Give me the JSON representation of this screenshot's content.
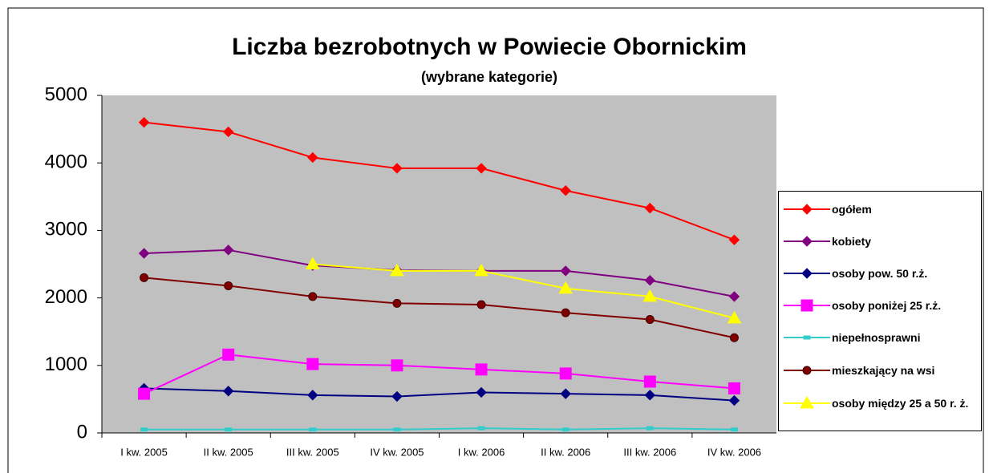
{
  "chart_data": {
    "type": "line",
    "title": "Liczba bezrobotnych  w Powiecie Obornickim",
    "subtitle": "(wybrane kategorie)",
    "categories": [
      "I kw. 2005",
      "II kw. 2005",
      "III kw. 2005",
      "IV kw. 2005",
      "I kw. 2006",
      "II kw. 2006",
      "III kw. 2006",
      "IV kw. 2006"
    ],
    "ylim": [
      0,
      5000
    ],
    "yticks": [
      0,
      1000,
      2000,
      3000,
      4000,
      5000
    ],
    "grid": false,
    "legend": "right",
    "series": [
      {
        "name": "ogółem",
        "color": "#ff0000",
        "marker": "diamond",
        "values": [
          4600,
          4460,
          4080,
          3920,
          3920,
          3590,
          3330,
          2860
        ]
      },
      {
        "name": "kobiety",
        "color": "#800080",
        "marker": "diamond",
        "values": [
          2660,
          2710,
          2480,
          2410,
          2400,
          2400,
          2260,
          2020
        ]
      },
      {
        "name": "osoby pow. 50 r.ż.",
        "color": "#000080",
        "marker": "diamond",
        "values": [
          660,
          620,
          560,
          540,
          600,
          580,
          560,
          480
        ]
      },
      {
        "name": "osoby poniżej 25 r.ż.",
        "color": "#ff00ff",
        "marker": "square",
        "values": [
          580,
          1160,
          1020,
          1000,
          940,
          880,
          760,
          660
        ]
      },
      {
        "name": "niepełnosprawni",
        "color": "#33cccc",
        "marker": "dash",
        "values": [
          50,
          50,
          50,
          50,
          70,
          50,
          70,
          50
        ]
      },
      {
        "name": "mieszkający na wsi",
        "color": "#800000",
        "marker": "circle",
        "values": [
          2300,
          2180,
          2020,
          1920,
          1900,
          1780,
          1680,
          1410
        ]
      },
      {
        "name": "osoby między 25 a 50 r. ż.",
        "color": "#ffff00",
        "marker": "triangle",
        "values": [
          null,
          null,
          2500,
          2400,
          2400,
          2140,
          2020,
          1700
        ]
      }
    ]
  }
}
